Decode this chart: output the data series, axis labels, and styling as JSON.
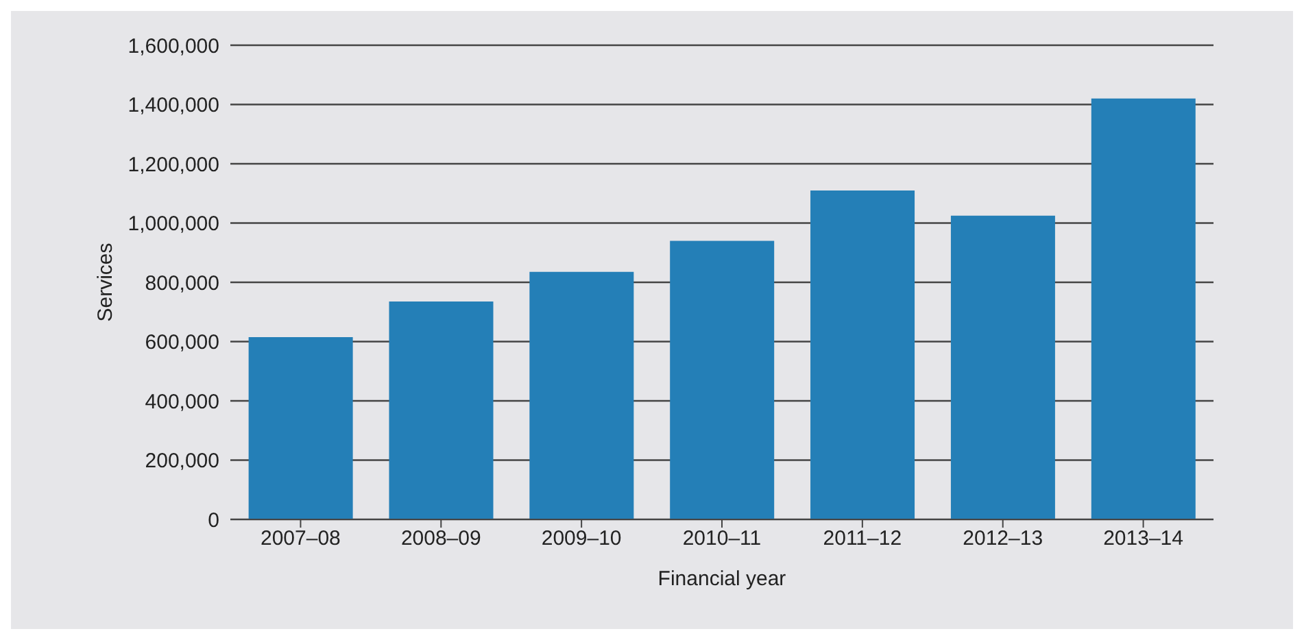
{
  "chart_data": {
    "type": "bar",
    "xlabel": "Financial year",
    "ylabel": "Services",
    "categories": [
      "2007–08",
      "2008–09",
      "2009–10",
      "2010–11",
      "2011–12",
      "2012–13",
      "2013–14"
    ],
    "values": [
      615000,
      735000,
      835000,
      940000,
      1110000,
      1025000,
      1420000
    ],
    "color": "#247fb7",
    "ylim": [
      0,
      1600000
    ],
    "yticks": [
      0,
      {
        "value": 200000,
        "label": "200,000"
      },
      {
        "value": 400000,
        "label": "400,000"
      },
      {
        "value": 600000,
        "label": "600,000"
      },
      {
        "value": 800000,
        "label": "800,000"
      },
      {
        "value": 1000000,
        "label": "1,000,000"
      },
      {
        "value": 1200000,
        "label": "1,200,000"
      },
      {
        "value": 1400000,
        "label": "1,400,000"
      },
      {
        "value": 1600000,
        "label": "1,600,000"
      }
    ],
    "grid": "y"
  }
}
